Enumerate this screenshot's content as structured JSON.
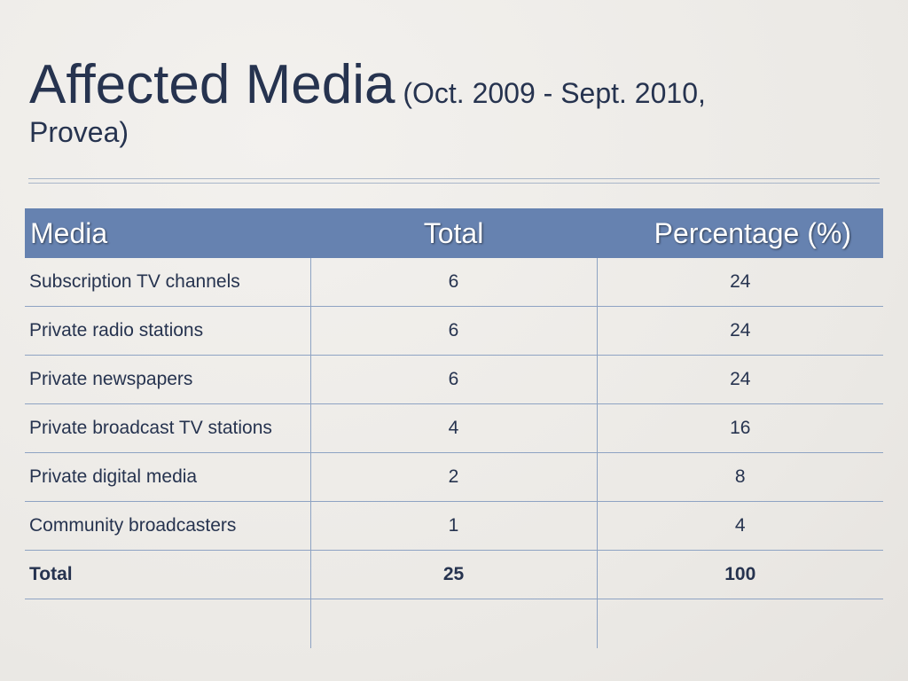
{
  "title": {
    "main": "Affected Media",
    "sub_line1": " (Oct. 2009 - Sept. 2010,",
    "sub_line2": "Provea)"
  },
  "table": {
    "headers": [
      "Media",
      "Total",
      "Percentage (%)"
    ],
    "rows": [
      {
        "media": "Subscription TV channels",
        "total": "6",
        "percentage": "24"
      },
      {
        "media": "Private radio stations",
        "total": "6",
        "percentage": "24"
      },
      {
        "media": "Private newspapers",
        "total": "6",
        "percentage": "24"
      },
      {
        "media": "Private broadcast TV stations",
        "total": "4",
        "percentage": "16"
      },
      {
        "media": "Private digital media",
        "total": "2",
        "percentage": "8"
      },
      {
        "media": "Community broadcasters",
        "total": "1",
        "percentage": "4"
      }
    ],
    "total_row": {
      "media": "Total",
      "total": "25",
      "percentage": "100"
    }
  },
  "colors": {
    "header_bg": "#6682b0",
    "text": "#26334f",
    "rule": "#8ea3c3",
    "background": "#efede9"
  }
}
